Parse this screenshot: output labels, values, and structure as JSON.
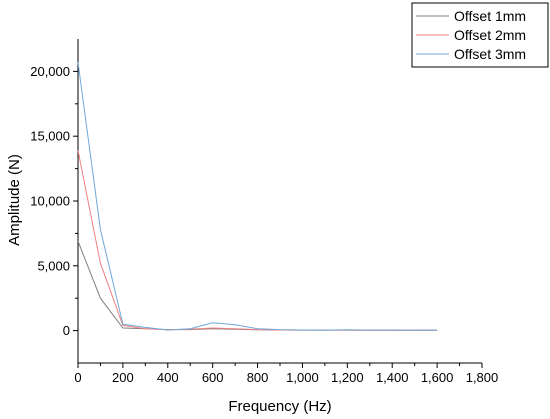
{
  "chart_data": {
    "type": "line",
    "xlabel": "Frequency (Hz)",
    "ylabel": "Amplitude (N)",
    "xlim": [
      0,
      1800
    ],
    "ylim": [
      -2500,
      22500
    ],
    "x_ticks": [
      0,
      200,
      400,
      600,
      800,
      1000,
      1200,
      1400,
      1600,
      1800
    ],
    "x_tick_labels": [
      "0",
      "200",
      "400",
      "600",
      "800",
      "1,000",
      "1,200",
      "1,400",
      "1,600",
      "1,800"
    ],
    "y_ticks": [
      0,
      5000,
      10000,
      15000,
      20000
    ],
    "y_tick_labels": [
      "0",
      "5,000",
      "10,000",
      "15,000",
      "20,000"
    ],
    "legend_position": "top-right",
    "grid": false,
    "series": [
      {
        "name": "Offset 1mm",
        "color": "#808080",
        "x": [
          0,
          100,
          200,
          300,
          400,
          500,
          600,
          700,
          800,
          900,
          1000,
          1100,
          1200,
          1300,
          1400,
          1500,
          1600
        ],
        "y": [
          6900,
          2500,
          200,
          150,
          80,
          80,
          150,
          100,
          60,
          50,
          40,
          40,
          40,
          30,
          30,
          20,
          20
        ]
      },
      {
        "name": "Offset 2mm",
        "color": "#f08080",
        "x": [
          0,
          100,
          200,
          300,
          400,
          500,
          600,
          700,
          800,
          900,
          1000,
          1100,
          1200,
          1300,
          1400,
          1500,
          1600
        ],
        "y": [
          13900,
          5200,
          400,
          150,
          60,
          100,
          200,
          150,
          80,
          50,
          40,
          40,
          40,
          30,
          30,
          20,
          20
        ]
      },
      {
        "name": "Offset 3mm",
        "color": "#6fa8dc",
        "x": [
          0,
          100,
          200,
          300,
          400,
          500,
          600,
          700,
          800,
          900,
          1000,
          1100,
          1200,
          1300,
          1400,
          1500,
          1600
        ],
        "y": [
          20700,
          7800,
          500,
          250,
          50,
          150,
          600,
          450,
          150,
          80,
          50,
          40,
          60,
          40,
          40,
          30,
          20
        ]
      }
    ]
  }
}
